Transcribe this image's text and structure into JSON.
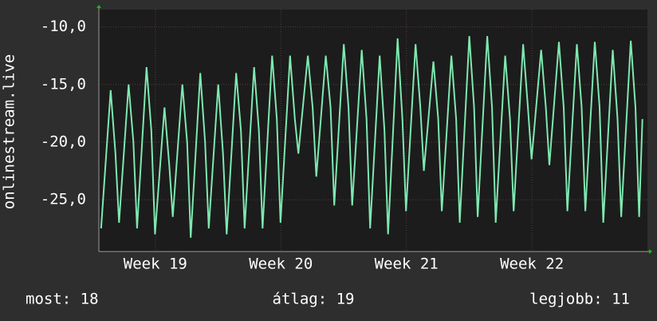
{
  "chart_data": {
    "type": "line",
    "ylabel": "onlinestream.live",
    "xlim": [
      18.55,
      22.92
    ],
    "ylim": [
      -29.5,
      -8.5
    ],
    "yticks": [
      {
        "value": -10,
        "label": "-10,0"
      },
      {
        "value": -15,
        "label": "-15,0"
      },
      {
        "value": -20,
        "label": "-20,0"
      },
      {
        "value": -25,
        "label": "-25,0"
      }
    ],
    "xticks": [
      {
        "value": 19,
        "label": "Week 19"
      },
      {
        "value": 20,
        "label": "Week 20"
      },
      {
        "value": 21,
        "label": "Week 21"
      },
      {
        "value": 22,
        "label": "Week 22"
      }
    ],
    "grid": true,
    "x": [
      18.568,
      18.644,
      18.682,
      18.711,
      18.787,
      18.825,
      18.854,
      18.93,
      18.968,
      18.997,
      19.073,
      19.111,
      19.139,
      19.215,
      19.253,
      19.282,
      19.358,
      19.396,
      19.425,
      19.501,
      19.539,
      19.568,
      19.644,
      19.682,
      19.711,
      19.787,
      19.825,
      19.854,
      19.93,
      19.968,
      19.997,
      20.073,
      20.111,
      20.139,
      20.215,
      20.253,
      20.282,
      20.358,
      20.396,
      20.425,
      20.501,
      20.539,
      20.568,
      20.644,
      20.682,
      20.711,
      20.787,
      20.825,
      20.854,
      20.93,
      20.968,
      20.997,
      21.073,
      21.111,
      21.139,
      21.215,
      21.253,
      21.282,
      21.358,
      21.396,
      21.425,
      21.501,
      21.539,
      21.568,
      21.644,
      21.682,
      21.711,
      21.787,
      21.825,
      21.854,
      21.93,
      21.968,
      21.997,
      22.073,
      22.111,
      22.139,
      22.215,
      22.253,
      22.282,
      22.358,
      22.396,
      22.425,
      22.501,
      22.539,
      22.568,
      22.644,
      22.682,
      22.711,
      22.787,
      22.825,
      22.854,
      22.88
    ],
    "series": [
      {
        "color": "#7ee8b0",
        "values": [
          -27.5,
          -15.5,
          -21,
          -27,
          -15,
          -20,
          -27.5,
          -13.5,
          -19,
          -28,
          -17,
          -22,
          -26.5,
          -15,
          -20,
          -28.3,
          -14,
          -20,
          -27.5,
          -15,
          -21,
          -28,
          -14,
          -19,
          -27.5,
          -13.5,
          -19,
          -27.5,
          -12.5,
          -18,
          -27,
          -12.5,
          -18,
          -21,
          -12.5,
          -17,
          -23,
          -12.5,
          -17,
          -25.5,
          -11.5,
          -17,
          -25.5,
          -12,
          -18,
          -27.5,
          -12.5,
          -19,
          -28,
          -11,
          -18,
          -26,
          -11.5,
          -17,
          -22.5,
          -13,
          -18,
          -26,
          -12.5,
          -18,
          -27,
          -10.8,
          -17,
          -26.5,
          -10.8,
          -17,
          -27,
          -12.5,
          -18,
          -26,
          -11.5,
          -17,
          -21.5,
          -12,
          -17,
          -22,
          -11.3,
          -17,
          -26,
          -11.5,
          -17,
          -26,
          -11.3,
          -17,
          -27,
          -12,
          -18,
          -26.5,
          -11.2,
          -17,
          -26.5,
          -18
        ]
      }
    ],
    "footer": [
      "most: 18",
      "átlag: 19",
      "legjobb: 11"
    ]
  }
}
